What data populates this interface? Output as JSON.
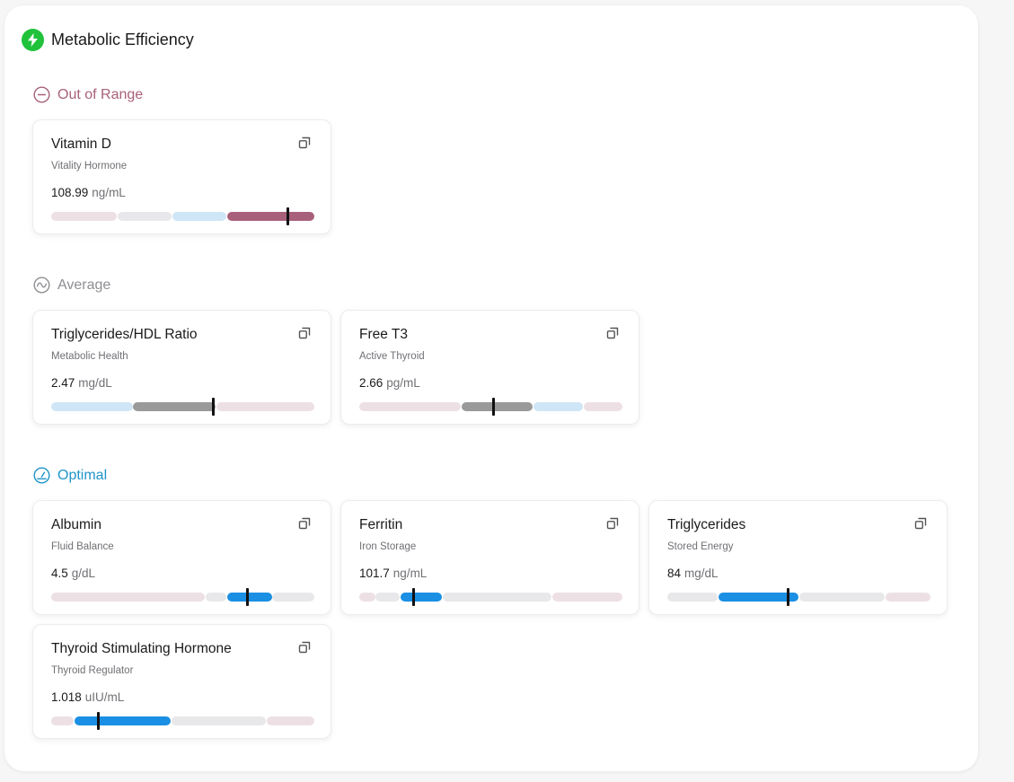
{
  "panel": {
    "title": "Metabolic Efficiency",
    "icon": "lightning-bolt-icon",
    "icon_color": "#1fc23a"
  },
  "colors": {
    "out_of_range": "#a8607a",
    "average": "#8e8e93",
    "optimal": "#1e94c9",
    "seg_pink": "#ede0e4",
    "seg_gray": "#e8e8ea",
    "seg_lightblue": "#cfe6f7",
    "seg_active_out": "#a8607a",
    "seg_active_avg": "#9a9a9a",
    "seg_active_opt": "#1a8fe3"
  },
  "sections": {
    "out_of_range": {
      "label": "Out of Range",
      "icon": "minus-circle-icon"
    },
    "average": {
      "label": "Average",
      "icon": "wave-circle-icon"
    },
    "optimal": {
      "label": "Optimal",
      "icon": "gauge-icon"
    }
  },
  "cards": [
    {
      "name": "Vitamin D",
      "subtitle": "Vitality Hormone",
      "value": "108.99",
      "unit": "ng/mL",
      "section": "out_of_range",
      "marker": 0.9,
      "segments": [
        {
          "from": 0.0,
          "to": 0.25,
          "color": "seg_pink"
        },
        {
          "from": 0.253,
          "to": 0.458,
          "color": "seg_gray"
        },
        {
          "from": 0.461,
          "to": 0.665,
          "color": "seg_lightblue"
        },
        {
          "from": 0.668,
          "to": 1.0,
          "color": "seg_active_out"
        }
      ]
    },
    {
      "name": "Triglycerides/HDL Ratio",
      "subtitle": "Metabolic Health",
      "value": "2.47",
      "unit": "mg/dL",
      "section": "average",
      "marker": 0.615,
      "segments": [
        {
          "from": 0.0,
          "to": 0.31,
          "color": "seg_lightblue"
        },
        {
          "from": 0.31,
          "to": 0.625,
          "color": "seg_active_avg"
        },
        {
          "from": 0.628,
          "to": 1.0,
          "color": "seg_pink"
        }
      ]
    },
    {
      "name": "Free T3",
      "subtitle": "Active Thyroid",
      "value": "2.66",
      "unit": "pg/mL",
      "section": "average",
      "marker": 0.51,
      "segments": [
        {
          "from": 0.0,
          "to": 0.385,
          "color": "seg_pink"
        },
        {
          "from": 0.388,
          "to": 0.658,
          "color": "seg_active_avg"
        },
        {
          "from": 0.661,
          "to": 0.85,
          "color": "seg_lightblue"
        },
        {
          "from": 0.853,
          "to": 1.0,
          "color": "seg_pink"
        }
      ]
    },
    {
      "name": "Albumin",
      "subtitle": "Fluid Balance",
      "value": "4.5",
      "unit": "g/dL",
      "section": "optimal",
      "marker": 0.745,
      "segments": [
        {
          "from": 0.0,
          "to": 0.585,
          "color": "seg_pink"
        },
        {
          "from": 0.588,
          "to": 0.665,
          "color": "seg_gray"
        },
        {
          "from": 0.668,
          "to": 0.838,
          "color": "seg_active_opt"
        },
        {
          "from": 0.841,
          "to": 1.0,
          "color": "seg_gray"
        }
      ]
    },
    {
      "name": "Ferritin",
      "subtitle": "Iron Storage",
      "value": "101.7",
      "unit": "ng/mL",
      "section": "optimal",
      "marker": 0.205,
      "segments": [
        {
          "from": 0.0,
          "to": 0.06,
          "color": "seg_pink"
        },
        {
          "from": 0.063,
          "to": 0.155,
          "color": "seg_gray"
        },
        {
          "from": 0.158,
          "to": 0.315,
          "color": "seg_active_opt"
        },
        {
          "from": 0.318,
          "to": 0.73,
          "color": "seg_gray"
        },
        {
          "from": 0.733,
          "to": 1.0,
          "color": "seg_pink"
        }
      ]
    },
    {
      "name": "Triglycerides",
      "subtitle": "Stored Energy",
      "value": "84",
      "unit": "mg/dL",
      "section": "optimal",
      "marker": 0.46,
      "segments": [
        {
          "from": 0.0,
          "to": 0.19,
          "color": "seg_gray"
        },
        {
          "from": 0.193,
          "to": 0.5,
          "color": "seg_active_opt"
        },
        {
          "from": 0.503,
          "to": 0.825,
          "color": "seg_gray"
        },
        {
          "from": 0.828,
          "to": 1.0,
          "color": "seg_pink"
        }
      ]
    },
    {
      "name": "Thyroid Stimulating Hormone",
      "subtitle": "Thyroid Regulator",
      "value": "1.018",
      "unit": "uIU/mL",
      "section": "optimal",
      "marker": 0.18,
      "segments": [
        {
          "from": 0.0,
          "to": 0.085,
          "color": "seg_pink"
        },
        {
          "from": 0.088,
          "to": 0.455,
          "color": "seg_active_opt"
        },
        {
          "from": 0.458,
          "to": 0.815,
          "color": "seg_gray"
        },
        {
          "from": 0.818,
          "to": 1.0,
          "color": "seg_pink"
        }
      ]
    }
  ]
}
